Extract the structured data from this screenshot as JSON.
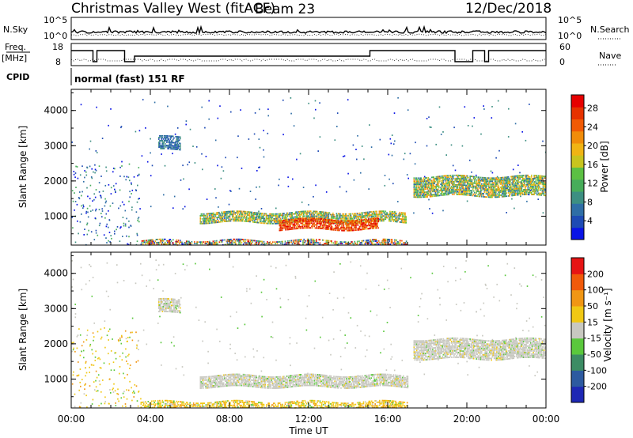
{
  "header": {
    "site": "Christmas Valley West (fitACF)",
    "beam": "Beam 23",
    "date": "12/Dec/2018"
  },
  "strip_panels": {
    "nsky_label": "N.Sky",
    "nsky_ticks": [
      "10^5",
      "10^0"
    ],
    "nsearch_label": "N.Search",
    "nsearch_ticks": [
      "10^5",
      "10^0"
    ],
    "freq_label": "Freq.",
    "freq_unit": "[MHz]",
    "freq_ticks": [
      "18",
      "8"
    ],
    "nave_label": "Nave",
    "nave_ticks": [
      "60",
      "0"
    ],
    "cpid_label": "CPID",
    "cpid_text": "normal (fast) 151 RF"
  },
  "chart_data": [
    {
      "type": "heatmap",
      "name": "power",
      "ylabel": "Slant Range [km]",
      "xlabel": "",
      "yticks": [
        "1000",
        "2000",
        "3000",
        "4000"
      ],
      "ylim": [
        180,
        4600
      ],
      "xlim": [
        0,
        24
      ],
      "colorbar": {
        "label": "Power [dB]",
        "ticks": [
          "4",
          "8",
          "12",
          "16",
          "20",
          "24",
          "28"
        ],
        "colors": [
          "#0a14e6",
          "#1e4bb4",
          "#2f6ea6",
          "#3d8f82",
          "#47ad5a",
          "#5cc043",
          "#c8c41e",
          "#f0b414",
          "#f08c0a",
          "#f05a05",
          "#e63200",
          "#e60000"
        ]
      },
      "bands": [
        {
          "start": 6.5,
          "end": 16.9,
          "range_lo": 850,
          "range_hi": 1150,
          "level": "mid"
        },
        {
          "start": 10.5,
          "end": 15.5,
          "range_lo": 650,
          "range_hi": 950,
          "level": "high"
        },
        {
          "start": 17.3,
          "end": 24.0,
          "range_lo": 1600,
          "range_hi": 2150,
          "level": "mid"
        },
        {
          "start": 4.4,
          "end": 5.5,
          "range_lo": 2900,
          "range_hi": 3300,
          "level": "low"
        },
        {
          "start": 3.5,
          "end": 17.0,
          "range_lo": 190,
          "range_hi": 330,
          "level": "mixed"
        }
      ]
    },
    {
      "type": "heatmap",
      "name": "velocity",
      "ylabel": "Slant Range [km]",
      "xlabel": "Time UT",
      "yticks": [
        "1000",
        "2000",
        "3000",
        "4000"
      ],
      "xticks": [
        "00:00",
        "04:00",
        "08:00",
        "12:00",
        "16:00",
        "20:00",
        "00:00"
      ],
      "ylim": [
        180,
        4600
      ],
      "xlim": [
        0,
        24
      ],
      "colorbar": {
        "label": "Velocity [m s⁻¹]",
        "ticks": [
          "200",
          "100",
          "50",
          "15",
          "-15",
          "-50",
          "-100",
          "-200"
        ],
        "colors": [
          "#1e28b4",
          "#2d5aa0",
          "#3c8c64",
          "#5ac83c",
          "#c8c8c0",
          "#f0c814",
          "#f09614",
          "#f05a0a",
          "#e61414"
        ]
      },
      "bands": [
        {
          "start": 6.5,
          "end": 17.0,
          "range_lo": 800,
          "range_hi": 1150,
          "level": "gray"
        },
        {
          "start": 17.3,
          "end": 24.0,
          "range_lo": 1600,
          "range_hi": 2150,
          "level": "gray"
        },
        {
          "start": 4.4,
          "end": 5.5,
          "range_lo": 2900,
          "range_hi": 3300,
          "level": "gray"
        },
        {
          "start": 3.5,
          "end": 17.0,
          "range_lo": 190,
          "range_hi": 400,
          "level": "orange"
        }
      ]
    }
  ]
}
